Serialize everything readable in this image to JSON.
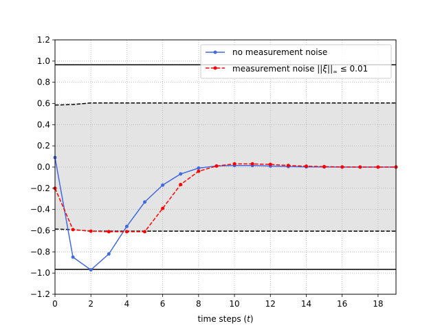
{
  "chart_data": {
    "type": "line",
    "title": "",
    "xlabel_main": "time steps (",
    "xlabel_var": "t",
    "xlabel_end": ")",
    "ylabel": "",
    "xlim": [
      0,
      19
    ],
    "ylim": [
      -1.2,
      1.2
    ],
    "xticks": [
      0,
      2,
      4,
      6,
      8,
      10,
      12,
      14,
      16,
      18
    ],
    "xtick_labels": [
      "0",
      "2",
      "4",
      "6",
      "8",
      "10",
      "12",
      "14",
      "16",
      "18"
    ],
    "yticks": [
      -1.2,
      -1.0,
      -0.8,
      -0.6,
      -0.4,
      -0.2,
      0.0,
      0.2,
      0.4,
      0.6,
      0.8,
      1.0,
      1.2
    ],
    "ytick_labels": [
      "−1.2",
      "−1.0",
      "−0.8",
      "−0.6",
      "−0.4",
      "−0.2",
      "0.0",
      "0.2",
      "0.4",
      "0.6",
      "0.8",
      "1.0",
      "1.2"
    ],
    "grid": true,
    "legend_position": "top-right",
    "series": [
      {
        "name": "no measurement noise",
        "color": "#4169e1",
        "style": "solid",
        "x": [
          0,
          1,
          2,
          3,
          4,
          5,
          6,
          7,
          8,
          9,
          10,
          11,
          12,
          13,
          14,
          15,
          16,
          17,
          18,
          19
        ],
        "y": [
          0.09,
          -0.85,
          -0.97,
          -0.82,
          -0.56,
          -0.33,
          -0.17,
          -0.065,
          -0.01,
          0.01,
          0.015,
          0.015,
          0.01,
          0.005,
          0.002,
          0.001,
          0.0,
          0.0,
          0.0,
          0.0
        ]
      },
      {
        "name_main": "measurement noise ",
        "name_math": "||ξ||",
        "name_sub": "∞",
        "name_end": " ≤ 0.01",
        "color": "#ff0000",
        "style": "dashed",
        "x": [
          0,
          1,
          2,
          3,
          4,
          5,
          6,
          7,
          8,
          9,
          10,
          11,
          12,
          13,
          14,
          15,
          16,
          17,
          18,
          19
        ],
        "y": [
          -0.2,
          -0.59,
          -0.605,
          -0.61,
          -0.61,
          -0.61,
          -0.39,
          -0.165,
          -0.04,
          0.01,
          0.03,
          0.03,
          0.025,
          0.015,
          0.008,
          0.004,
          0.001,
          0.0,
          0.0,
          0.0
        ]
      }
    ],
    "hard_limits": [
      0.965,
      -0.965
    ],
    "tube_upper": {
      "x": [
        0,
        1,
        2,
        3,
        4,
        5,
        6,
        7,
        8,
        9,
        10,
        11,
        12,
        13,
        14,
        15,
        16,
        17,
        18,
        19
      ],
      "y": [
        0.585,
        0.59,
        0.605,
        0.605,
        0.605,
        0.605,
        0.605,
        0.605,
        0.605,
        0.605,
        0.605,
        0.605,
        0.605,
        0.605,
        0.605,
        0.605,
        0.605,
        0.605,
        0.605,
        0.605
      ]
    },
    "tube_lower": {
      "x": [
        0,
        1,
        2,
        3,
        4,
        5,
        6,
        7,
        8,
        9,
        10,
        11,
        12,
        13,
        14,
        15,
        16,
        17,
        18,
        19
      ],
      "y": [
        -0.585,
        -0.59,
        -0.605,
        -0.605,
        -0.605,
        -0.605,
        -0.605,
        -0.605,
        -0.605,
        -0.605,
        -0.605,
        -0.605,
        -0.605,
        -0.605,
        -0.605,
        -0.605,
        -0.605,
        -0.605,
        -0.605,
        -0.605
      ]
    },
    "tube_fill_color": "#e4e4e4"
  }
}
